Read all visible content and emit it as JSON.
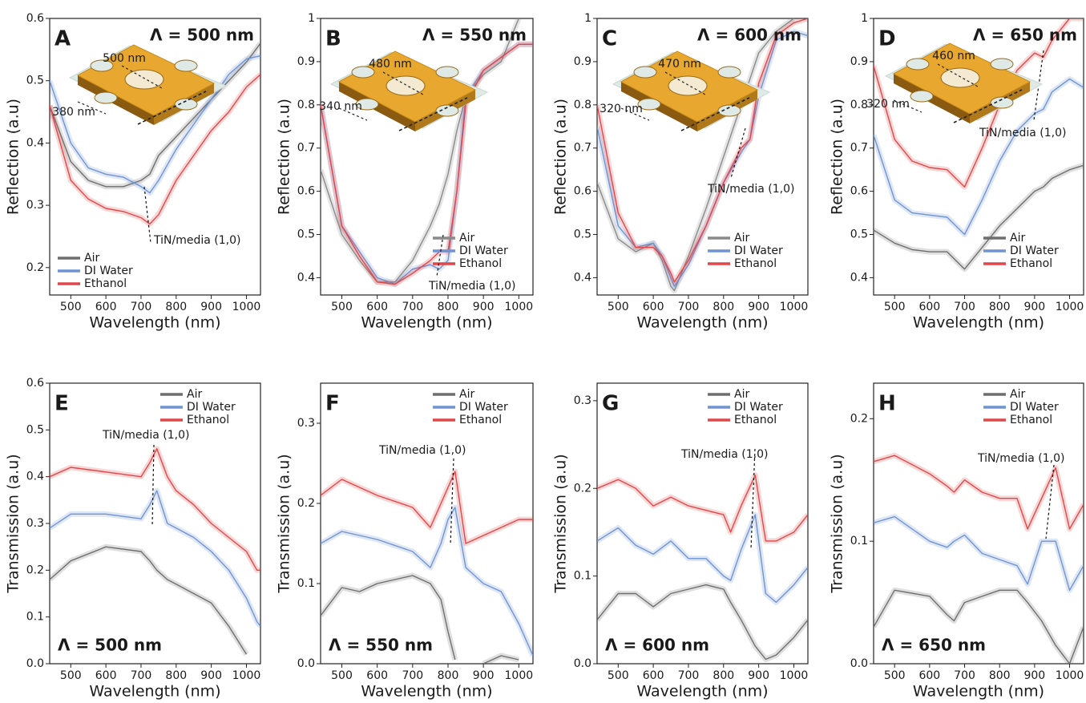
{
  "chart_data": [
    {
      "type": "line",
      "panel_label": "A",
      "period_label": "Λ = 500 nm",
      "annotation": "TiN/media (1,0)",
      "inset_labels": [
        "500 nm",
        "380 nm"
      ],
      "xlabel": "Wavelength (nm)",
      "ylabel": "Reflection (a.u)",
      "x": [
        440,
        500,
        550,
        600,
        650,
        700,
        725,
        750,
        800,
        850,
        900,
        950,
        1000,
        1040
      ],
      "series": [
        {
          "name": "Air",
          "color": "#6e6e6e",
          "values": [
            0.46,
            0.37,
            0.34,
            0.33,
            0.33,
            0.34,
            0.35,
            0.38,
            0.41,
            0.44,
            0.47,
            0.5,
            0.53,
            0.56
          ]
        },
        {
          "name": "DI Water",
          "color": "#6f93d3",
          "values": [
            0.5,
            0.4,
            0.36,
            0.35,
            0.345,
            0.33,
            0.32,
            0.34,
            0.39,
            0.43,
            0.47,
            0.51,
            0.535,
            0.54
          ]
        },
        {
          "name": "Ethanol",
          "color": "#e0474a",
          "values": [
            0.46,
            0.34,
            0.31,
            0.295,
            0.29,
            0.28,
            0.27,
            0.285,
            0.34,
            0.38,
            0.42,
            0.45,
            0.49,
            0.51
          ]
        }
      ],
      "xlim": [
        440,
        1040
      ],
      "ylim": [
        0.156,
        0.6
      ],
      "xticks": [
        500,
        600,
        700,
        800,
        900,
        1000
      ],
      "yticks": [
        0.2,
        0.3,
        0.4,
        0.5,
        0.6
      ],
      "grid": false,
      "legend": "lower left"
    },
    {
      "type": "line",
      "panel_label": "B",
      "period_label": "Λ = 550 nm",
      "annotation": "TiN/media (1,0)",
      "inset_labels": [
        "480 nm",
        "340 nm"
      ],
      "xlabel": "Wavelength (nm)",
      "ylabel": "Reflection (a.u)",
      "x": [
        440,
        500,
        550,
        600,
        650,
        700,
        750,
        775,
        800,
        825,
        850,
        900,
        950,
        1000,
        1040
      ],
      "series": [
        {
          "name": "Air",
          "color": "#8a8a8a",
          "values": [
            0.65,
            0.5,
            0.44,
            0.39,
            0.39,
            0.44,
            0.52,
            0.57,
            0.64,
            0.74,
            0.82,
            0.87,
            0.9,
            1.0,
            null
          ]
        },
        {
          "name": "DI Water",
          "color": "#6f93d3",
          "values": [
            0.8,
            0.52,
            0.46,
            0.4,
            0.385,
            0.42,
            0.43,
            0.42,
            0.44,
            0.6,
            0.82,
            0.88,
            0.91,
            0.94,
            0.94
          ]
        },
        {
          "name": "Ethanol",
          "color": "#e0474a",
          "values": [
            0.8,
            0.52,
            0.45,
            0.39,
            0.385,
            0.41,
            0.44,
            0.46,
            0.46,
            0.6,
            0.8,
            0.88,
            0.91,
            0.94,
            0.94
          ]
        }
      ],
      "xlim": [
        440,
        1040
      ],
      "ylim": [
        0.36,
        1.0
      ],
      "xticks": [
        500,
        600,
        700,
        800,
        900,
        1000
      ],
      "yticks": [
        0.4,
        0.5,
        0.6,
        0.7,
        0.8,
        0.9,
        1.0
      ],
      "grid": false,
      "legend": "lower right"
    },
    {
      "type": "line",
      "panel_label": "C",
      "period_label": "Λ = 600 nm",
      "annotation": "TiN/media (1,0)",
      "inset_labels": [
        "470 nm",
        "320 nm"
      ],
      "xlabel": "Wavelength (nm)",
      "ylabel": "Reflection (a.u)",
      "x": [
        440,
        500,
        550,
        600,
        625,
        650,
        660,
        700,
        750,
        800,
        850,
        875,
        900,
        950,
        1000,
        1040
      ],
      "series": [
        {
          "name": "Air",
          "color": "#8a8a8a",
          "values": [
            0.62,
            0.49,
            0.46,
            0.48,
            0.44,
            0.38,
            0.37,
            0.45,
            0.56,
            0.68,
            0.8,
            0.86,
            0.92,
            0.97,
            1.0,
            null
          ]
        },
        {
          "name": "DI Water",
          "color": "#6f93d3",
          "values": [
            0.75,
            0.52,
            0.47,
            0.48,
            0.45,
            0.4,
            0.38,
            0.43,
            0.52,
            0.62,
            0.69,
            0.72,
            0.82,
            0.95,
            0.97,
            0.96
          ]
        },
        {
          "name": "Ethanol",
          "color": "#e0474a",
          "values": [
            0.8,
            0.55,
            0.47,
            0.47,
            0.45,
            0.41,
            0.39,
            0.44,
            0.52,
            0.62,
            0.7,
            0.72,
            0.85,
            0.96,
            0.99,
            1.0
          ]
        }
      ],
      "xlim": [
        440,
        1040
      ],
      "ylim": [
        0.36,
        1.0
      ],
      "xticks": [
        500,
        600,
        700,
        800,
        900,
        1000
      ],
      "yticks": [
        0.4,
        0.5,
        0.6,
        0.7,
        0.8,
        0.9,
        1.0
      ],
      "grid": false,
      "legend": "lower right"
    },
    {
      "type": "line",
      "panel_label": "D",
      "period_label": "Λ = 650 nm",
      "annotation": "TiN/media (1,0)",
      "inset_labels": [
        "460 nm",
        "320 nm"
      ],
      "xlabel": "Wavelength (nm)",
      "ylabel": "Reflection (a.u)",
      "x": [
        440,
        500,
        550,
        600,
        650,
        700,
        750,
        800,
        850,
        900,
        925,
        950,
        1000,
        1040
      ],
      "series": [
        {
          "name": "Air",
          "color": "#6e6e6e",
          "values": [
            0.51,
            0.48,
            0.465,
            0.46,
            0.46,
            0.42,
            0.47,
            0.52,
            0.56,
            0.6,
            0.61,
            0.63,
            0.65,
            0.66
          ]
        },
        {
          "name": "DI Water",
          "color": "#6f93d3",
          "values": [
            0.73,
            0.58,
            0.55,
            0.545,
            0.54,
            0.5,
            0.58,
            0.67,
            0.74,
            0.78,
            0.79,
            0.83,
            0.86,
            0.84
          ]
        },
        {
          "name": "Ethanol",
          "color": "#e0474a",
          "values": [
            0.89,
            0.72,
            0.67,
            0.655,
            0.65,
            0.61,
            0.7,
            0.8,
            0.88,
            0.92,
            0.91,
            0.95,
            1.0,
            1.0
          ]
        }
      ],
      "xlim": [
        440,
        1040
      ],
      "ylim": [
        0.36,
        1.0
      ],
      "xticks": [
        500,
        600,
        700,
        800,
        900,
        1000
      ],
      "yticks": [
        0.4,
        0.5,
        0.6,
        0.7,
        0.8,
        0.9,
        1.0
      ],
      "grid": false,
      "legend": "lower right"
    },
    {
      "type": "line",
      "panel_label": "E",
      "period_label": "Λ = 500 nm",
      "annotation": "TiN/media (1,0)",
      "xlabel": "Wavelength (nm)",
      "ylabel": "Transmission (a.u)",
      "x": [
        440,
        500,
        600,
        700,
        725,
        745,
        775,
        800,
        850,
        900,
        950,
        1000,
        1030,
        1040
      ],
      "series": [
        {
          "name": "Air",
          "color": "#6e6e6e",
          "values": [
            0.18,
            0.22,
            0.25,
            0.24,
            0.22,
            0.2,
            0.18,
            0.17,
            0.15,
            0.13,
            0.08,
            0.02,
            null,
            null
          ]
        },
        {
          "name": "DI Water",
          "color": "#6f93d3",
          "values": [
            0.29,
            0.32,
            0.32,
            0.31,
            0.34,
            0.37,
            0.3,
            0.29,
            0.27,
            0.24,
            0.2,
            0.14,
            0.09,
            0.08
          ]
        },
        {
          "name": "Ethanol",
          "color": "#e0474a",
          "values": [
            0.4,
            0.42,
            0.41,
            0.4,
            0.43,
            0.46,
            0.4,
            0.37,
            0.34,
            0.3,
            0.27,
            0.24,
            0.2,
            0.2
          ]
        }
      ],
      "xlim": [
        440,
        1040
      ],
      "ylim": [
        0,
        0.6
      ],
      "xticks": [
        500,
        600,
        700,
        800,
        900,
        1000
      ],
      "yticks": [
        {
          "value": 0,
          "label": "0.0"
        },
        0.1,
        0.2,
        0.3,
        0.4,
        0.5,
        0.6
      ],
      "grid": false,
      "legend": "upper right"
    },
    {
      "type": "line",
      "panel_label": "F",
      "period_label": "Λ = 550 nm",
      "annotation": "TiN/media (1,0)",
      "xlabel": "Wavelength (nm)",
      "ylabel": "Transmission (a.u)",
      "x": [
        440,
        500,
        550,
        600,
        700,
        750,
        780,
        800,
        820,
        850,
        900,
        950,
        1000,
        1040
      ],
      "series": [
        {
          "name": "Air",
          "color": "#6e6e6e",
          "values": [
            0.06,
            0.095,
            0.09,
            0.1,
            0.11,
            0.1,
            0.08,
            0.04,
            0.005,
            null,
            0.0,
            0.01,
            0.005,
            null
          ]
        },
        {
          "name": "DI Water",
          "color": "#6f93d3",
          "values": [
            0.15,
            0.165,
            0.16,
            0.155,
            0.14,
            0.12,
            0.15,
            0.18,
            0.195,
            0.12,
            0.1,
            0.09,
            0.05,
            0.01
          ]
        },
        {
          "name": "Ethanol",
          "color": "#e0474a",
          "values": [
            0.21,
            0.23,
            0.22,
            0.21,
            0.195,
            0.17,
            0.2,
            0.22,
            0.24,
            0.15,
            0.16,
            0.17,
            0.18,
            0.18
          ]
        }
      ],
      "xlim": [
        440,
        1040
      ],
      "ylim": [
        0,
        0.35
      ],
      "xticks": [
        500,
        600,
        700,
        800,
        900,
        1000
      ],
      "yticks": [
        {
          "value": 0,
          "label": "0.0"
        },
        0.1,
        0.2,
        0.3
      ],
      "grid": false,
      "legend": "upper right"
    },
    {
      "type": "line",
      "panel_label": "G",
      "period_label": "Λ = 600 nm",
      "annotation": "TiN/media (1,0)",
      "xlabel": "Wavelength (nm)",
      "ylabel": "Transmission (a.u)",
      "x": [
        440,
        500,
        550,
        600,
        650,
        700,
        750,
        800,
        820,
        850,
        890,
        920,
        950,
        1000,
        1040
      ],
      "series": [
        {
          "name": "Air",
          "color": "#6e6e6e",
          "values": [
            0.05,
            0.08,
            0.08,
            0.065,
            0.08,
            0.085,
            0.09,
            0.085,
            0.07,
            0.05,
            0.02,
            0.005,
            0.01,
            0.03,
            0.05
          ]
        },
        {
          "name": "DI Water",
          "color": "#6f93d3",
          "values": [
            0.14,
            0.155,
            0.135,
            0.125,
            0.14,
            0.12,
            0.12,
            0.1,
            0.095,
            0.13,
            0.17,
            0.08,
            0.07,
            0.09,
            0.11
          ]
        },
        {
          "name": "Ethanol",
          "color": "#e0474a",
          "values": [
            0.2,
            0.21,
            0.2,
            0.18,
            0.19,
            0.18,
            0.175,
            0.17,
            0.15,
            0.18,
            0.215,
            0.14,
            0.14,
            0.15,
            0.17
          ]
        }
      ],
      "xlim": [
        440,
        1040
      ],
      "ylim": [
        0,
        0.32
      ],
      "xticks": [
        500,
        600,
        700,
        800,
        900,
        1000
      ],
      "yticks": [
        {
          "value": 0,
          "label": "0.0"
        },
        0.1,
        0.2,
        0.3
      ],
      "grid": false,
      "legend": "upper right"
    },
    {
      "type": "line",
      "panel_label": "H",
      "period_label": "Λ = 650 nm",
      "annotation": "TiN/media (1,0)",
      "xlabel": "Wavelength (nm)",
      "ylabel": "Transmission (a.u)",
      "x": [
        440,
        500,
        600,
        650,
        670,
        700,
        750,
        800,
        850,
        880,
        920,
        960,
        1000,
        1040
      ],
      "series": [
        {
          "name": "Air",
          "color": "#6e6e6e",
          "values": [
            0.03,
            0.06,
            0.055,
            0.04,
            0.035,
            0.05,
            0.055,
            0.06,
            0.06,
            0.05,
            0.035,
            0.015,
            0.0,
            0.03
          ]
        },
        {
          "name": "DI Water",
          "color": "#6f93d3",
          "values": [
            0.115,
            0.12,
            0.1,
            0.095,
            0.1,
            0.105,
            0.09,
            0.085,
            0.08,
            0.065,
            0.1,
            0.1,
            0.06,
            0.08
          ]
        },
        {
          "name": "Ethanol",
          "color": "#e0474a",
          "values": [
            0.165,
            0.17,
            0.155,
            0.145,
            0.14,
            0.15,
            0.14,
            0.135,
            0.135,
            0.11,
            0.135,
            0.16,
            0.11,
            0.13
          ]
        }
      ],
      "xlim": [
        440,
        1040
      ],
      "ylim": [
        0,
        0.229
      ],
      "xticks": [
        500,
        600,
        700,
        800,
        900,
        1000
      ],
      "yticks": [
        {
          "value": 0,
          "label": "0.0"
        },
        0.1,
        0.2
      ],
      "grid": false,
      "legend": "upper right"
    }
  ]
}
